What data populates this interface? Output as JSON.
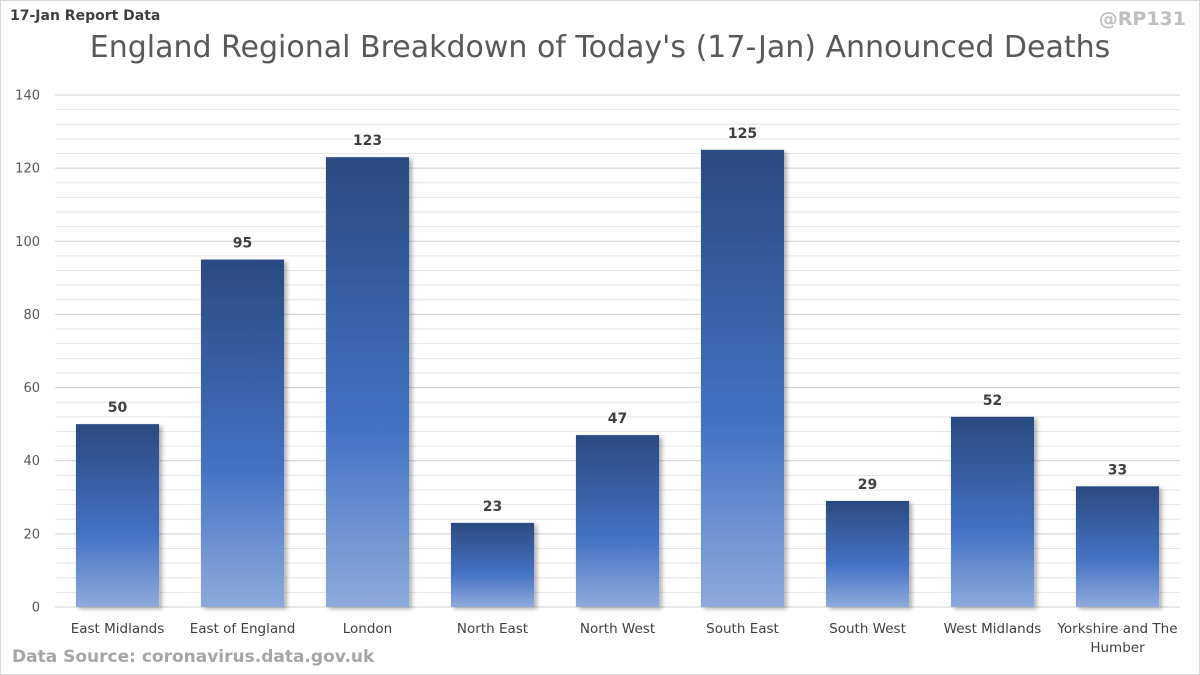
{
  "header": {
    "report_label": "17-Jan Report Data",
    "handle": "@RP131"
  },
  "footer": {
    "source": "Data Source: coronavirus.data.gov.uk"
  },
  "chart_data": {
    "type": "bar",
    "title": "England Regional Breakdown of Today's (17-Jan) Announced Deaths",
    "categories": [
      "East Midlands",
      "East of England",
      "London",
      "North East",
      "North West",
      "South East",
      "South West",
      "West Midlands",
      "Yorkshire and The Humber"
    ],
    "category_lines": [
      [
        "East Midlands"
      ],
      [
        "East of England"
      ],
      [
        "London"
      ],
      [
        "North East"
      ],
      [
        "North West"
      ],
      [
        "South East"
      ],
      [
        "South West"
      ],
      [
        "West Midlands"
      ],
      [
        "Yorkshire and The",
        "Humber"
      ]
    ],
    "values": [
      50,
      95,
      123,
      23,
      47,
      125,
      29,
      52,
      33
    ],
    "ylim": [
      0,
      140
    ],
    "yticks": [
      0,
      20,
      40,
      60,
      80,
      100,
      120,
      140
    ],
    "minor_grid_step": 4,
    "xlabel": "",
    "ylabel": "",
    "grid": true,
    "legend": "none",
    "colors": {
      "bar_top": "#2b4a80",
      "bar_mid": "#4472c4",
      "bar_bottom": "#8eaadb",
      "grid": "#e6e6e6",
      "grid_major": "#d0d0d0"
    }
  }
}
